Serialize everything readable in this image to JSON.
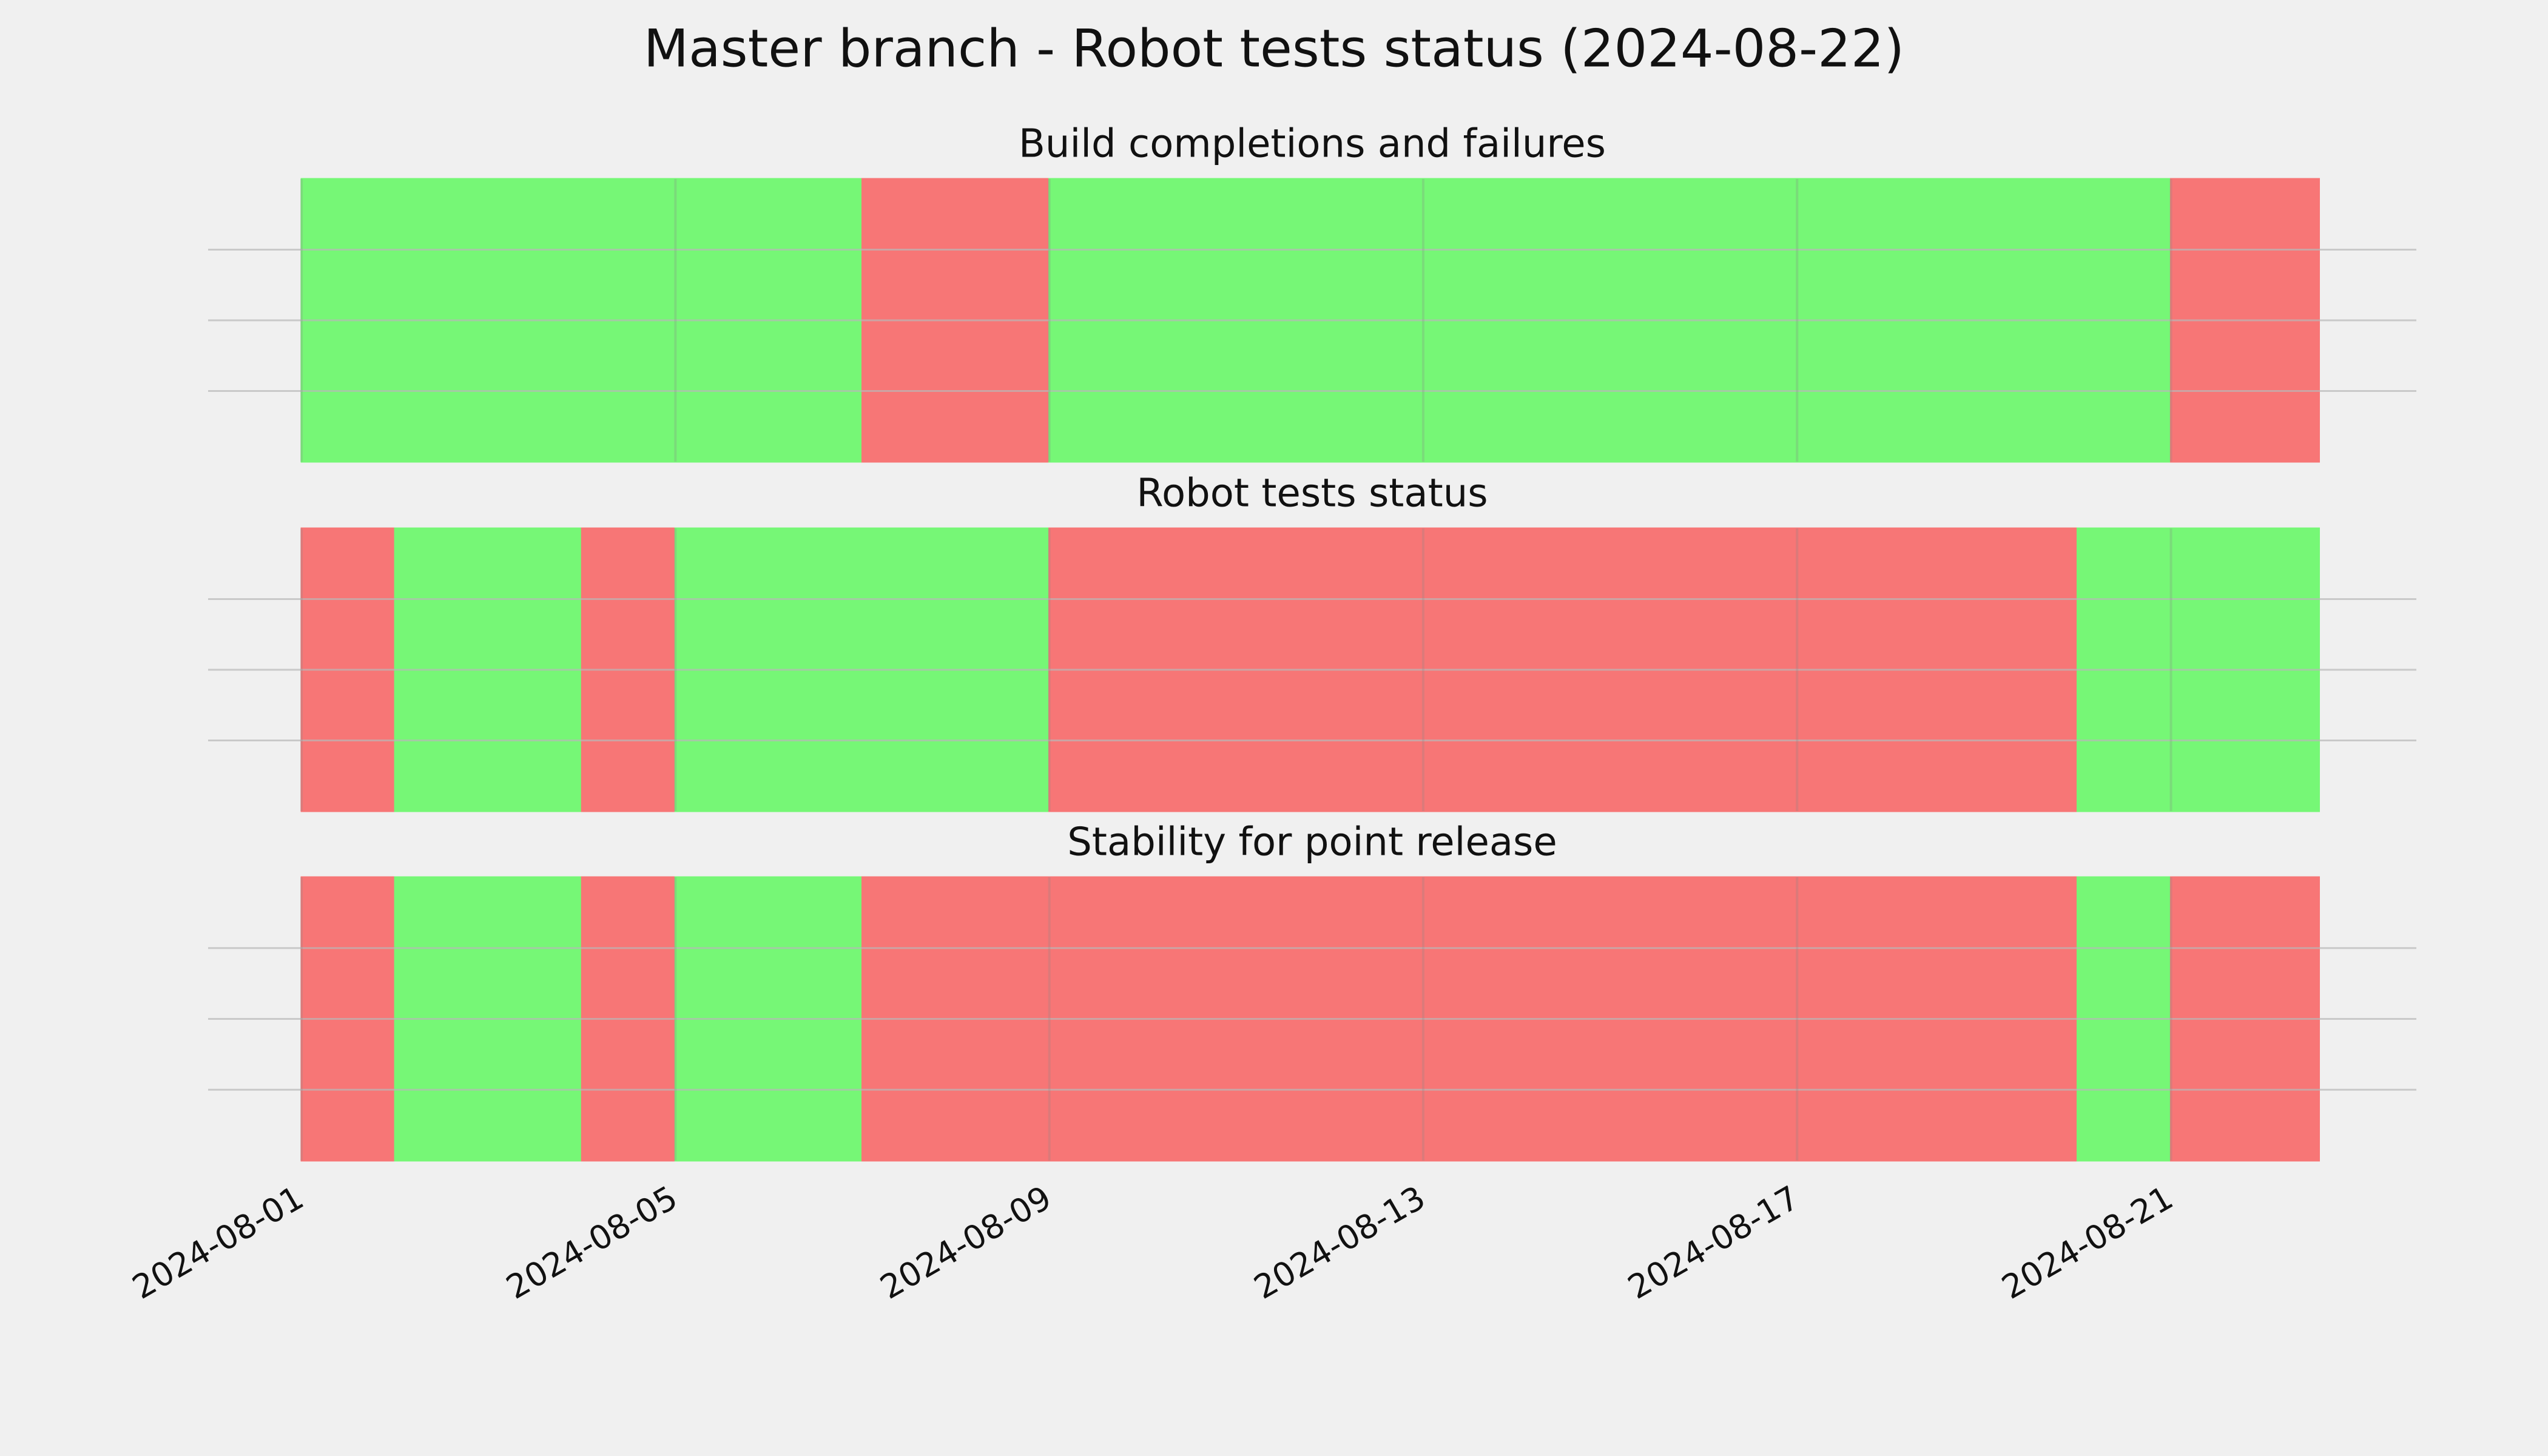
{
  "title": "Master branch - Robot tests status (2024-08-22)",
  "xlim": [
    "2024-07-31T00:00",
    "2024-08-23T15:00"
  ],
  "xticks": [
    "2024-08-01",
    "2024-08-05",
    "2024-08-09",
    "2024-08-13",
    "2024-08-17",
    "2024-08-21"
  ],
  "chart_data": [
    {
      "type": "timeline",
      "title": "Build completions and failures",
      "ylim": [
        0,
        1
      ],
      "yticks": [
        0.25,
        0.5,
        0.75
      ],
      "grid": true,
      "segments": [
        {
          "start": "2024-08-01",
          "end": "2024-08-07",
          "color": "#76f776"
        },
        {
          "start": "2024-08-07",
          "end": "2024-08-09",
          "color": "#f77676"
        },
        {
          "start": "2024-08-09",
          "end": "2024-08-21",
          "color": "#76f776"
        },
        {
          "start": "2024-08-21",
          "end": "2024-08-22T14:00",
          "color": "#f77676"
        }
      ]
    },
    {
      "type": "timeline",
      "title": "Robot tests status",
      "ylim": [
        0,
        1
      ],
      "yticks": [
        0.25,
        0.5,
        0.75
      ],
      "grid": true,
      "segments": [
        {
          "start": "2024-08-01",
          "end": "2024-08-02",
          "color": "#f77676"
        },
        {
          "start": "2024-08-02",
          "end": "2024-08-04",
          "color": "#76f776"
        },
        {
          "start": "2024-08-04",
          "end": "2024-08-05",
          "color": "#f77676"
        },
        {
          "start": "2024-08-05",
          "end": "2024-08-09",
          "color": "#76f776"
        },
        {
          "start": "2024-08-09",
          "end": "2024-08-20",
          "color": "#f77676"
        },
        {
          "start": "2024-08-20",
          "end": "2024-08-22T14:00",
          "color": "#76f776"
        }
      ]
    },
    {
      "type": "timeline",
      "title": "Stability for point release",
      "ylim": [
        0,
        1
      ],
      "yticks": [
        0.25,
        0.5,
        0.75
      ],
      "grid": true,
      "segments": [
        {
          "start": "2024-08-01",
          "end": "2024-08-02",
          "color": "#f77676"
        },
        {
          "start": "2024-08-02",
          "end": "2024-08-04",
          "color": "#76f776"
        },
        {
          "start": "2024-08-04",
          "end": "2024-08-05",
          "color": "#f77676"
        },
        {
          "start": "2024-08-05",
          "end": "2024-08-07",
          "color": "#76f776"
        },
        {
          "start": "2024-08-07",
          "end": "2024-08-20",
          "color": "#f77676"
        },
        {
          "start": "2024-08-20",
          "end": "2024-08-21",
          "color": "#76f776"
        },
        {
          "start": "2024-08-21",
          "end": "2024-08-22T14:00",
          "color": "#f77676"
        }
      ]
    }
  ]
}
